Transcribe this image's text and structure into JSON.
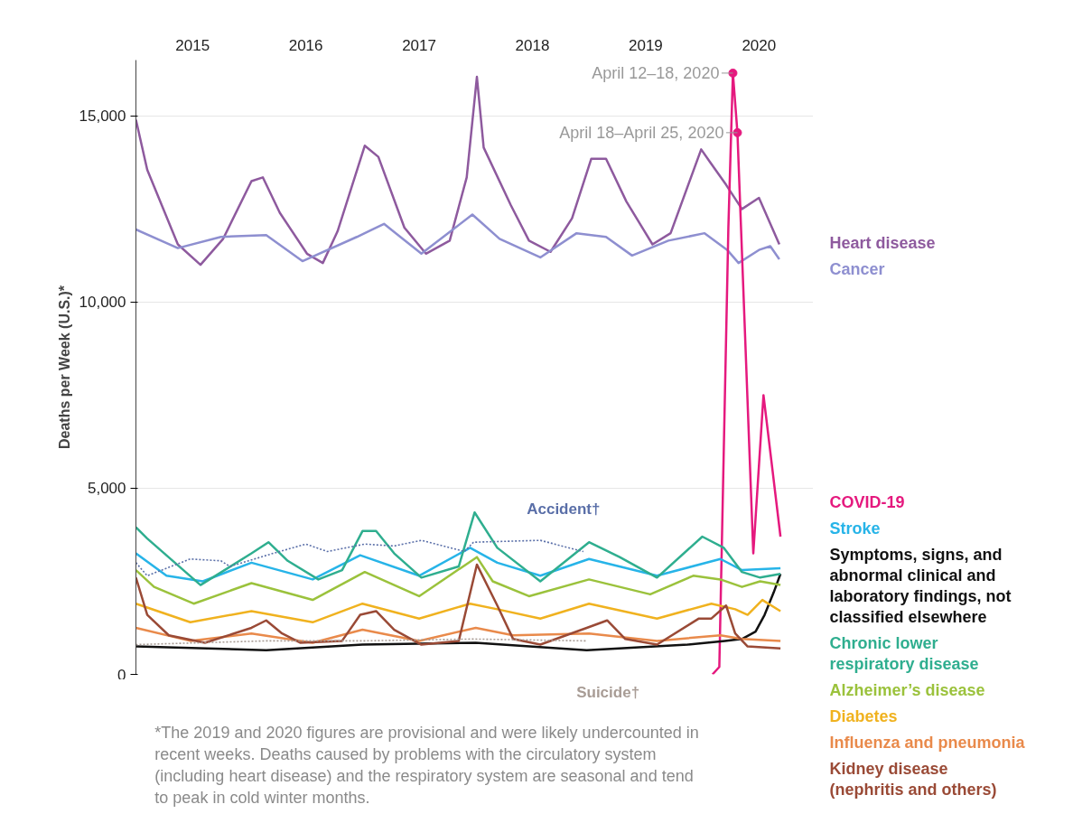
{
  "chart_data": {
    "type": "line",
    "ylabel": "Deaths per Week (U.S.)*",
    "xlim": [
      2015,
      2020.98
    ],
    "ylim": [
      0,
      16500
    ],
    "xticks": [
      {
        "value": 2015.5,
        "label": "2015"
      },
      {
        "value": 2016.5,
        "label": "2016"
      },
      {
        "value": 2017.5,
        "label": "2017"
      },
      {
        "value": 2018.5,
        "label": "2018"
      },
      {
        "value": 2019.5,
        "label": "2019"
      },
      {
        "value": 2020.5,
        "label": "2020"
      }
    ],
    "yticks": [
      0,
      {
        "value": 5000,
        "label": "5,000"
      },
      {
        "value": 10000,
        "label": "10,000"
      },
      {
        "value": 15000,
        "label": "15,000"
      }
    ],
    "grid": "y",
    "line_style": "solid",
    "marker": "none",
    "series": [
      {
        "name": "Heart disease",
        "color": "#8e5a9e",
        "x": [
          2015.0,
          2015.1,
          2015.37,
          2015.57,
          2015.77,
          2016.02,
          2016.12,
          2016.27,
          2016.51,
          2016.65,
          2016.78,
          2017.02,
          2017.14,
          2017.37,
          2017.56,
          2017.77,
          2017.92,
          2018.01,
          2018.07,
          2018.31,
          2018.47,
          2018.66,
          2018.85,
          2019.02,
          2019.15,
          2019.33,
          2019.56,
          2019.72,
          2019.99,
          2020.07,
          2020.21,
          2020.35,
          2020.5,
          2020.68
        ],
        "values": [
          14900,
          13550,
          11550,
          11000,
          11700,
          13250,
          13350,
          12400,
          11300,
          11050,
          11900,
          14200,
          13900,
          12000,
          11300,
          11650,
          13350,
          16050,
          14150,
          12600,
          11650,
          11350,
          12250,
          13850,
          13850,
          12700,
          11550,
          11850,
          14100,
          13750,
          13150,
          12500,
          12800,
          11550
        ]
      },
      {
        "name": "Cancer",
        "color": "#8e8fd0",
        "x": [
          2015.0,
          2015.37,
          2015.75,
          2016.15,
          2016.47,
          2016.95,
          2017.19,
          2017.52,
          2017.97,
          2018.21,
          2018.57,
          2018.89,
          2019.15,
          2019.38,
          2019.7,
          2020.02,
          2020.22,
          2020.32,
          2020.5,
          2020.6,
          2020.68
        ],
        "values": [
          11950,
          11450,
          11750,
          11800,
          11100,
          11750,
          12100,
          11300,
          12350,
          11700,
          11200,
          11850,
          11750,
          11250,
          11650,
          11850,
          11400,
          11050,
          11400,
          11500,
          11150
        ]
      },
      {
        "name": "COVID-19",
        "color": "#e5197e",
        "x": [
          2020.09,
          2020.15,
          2020.23,
          2020.27,
          2020.31,
          2020.45,
          2020.54,
          2020.69
        ],
        "values": [
          0,
          200,
          12000,
          16150,
          14550,
          3250,
          7500,
          3700
        ]
      },
      {
        "name": "Stroke",
        "color": "#27b4e8",
        "x": [
          2015.0,
          2015.27,
          2015.59,
          2016.02,
          2016.56,
          2016.98,
          2017.5,
          2017.95,
          2018.19,
          2018.57,
          2019.0,
          2019.6,
          2020.16,
          2020.35,
          2020.69
        ],
        "values": [
          3250,
          2650,
          2500,
          3000,
          2550,
          3200,
          2650,
          3400,
          3000,
          2650,
          3100,
          2650,
          3100,
          2800,
          2850
        ]
      },
      {
        "name": "Symptoms, signs, and abnormal clinical and laboratory findings, not classified elsewhere",
        "color": "#111111",
        "x": [
          2015.0,
          2016.15,
          2017.0,
          2018.0,
          2018.98,
          2019.87,
          2020.2,
          2020.35,
          2020.47,
          2020.55,
          2020.63,
          2020.69
        ],
        "values": [
          750,
          650,
          800,
          850,
          650,
          800,
          900,
          950,
          1150,
          1600,
          2200,
          2700
        ]
      },
      {
        "name": "Chronic lower respiratory disease",
        "color": "#2fae8f",
        "x": [
          2015.0,
          2015.1,
          2015.57,
          2016.02,
          2016.17,
          2016.34,
          2016.61,
          2016.82,
          2017.0,
          2017.12,
          2017.28,
          2017.52,
          2017.85,
          2017.99,
          2018.19,
          2018.57,
          2019.0,
          2019.27,
          2019.6,
          2020.0,
          2020.19,
          2020.35,
          2020.51,
          2020.69
        ],
        "values": [
          3950,
          3650,
          2400,
          3250,
          3550,
          3050,
          2550,
          2800,
          3850,
          3850,
          3250,
          2600,
          2900,
          4350,
          3400,
          2500,
          3550,
          3150,
          2600,
          3700,
          3400,
          2750,
          2600,
          2700
        ]
      },
      {
        "name": "Alzheimer’s disease",
        "color": "#9bc23c",
        "x": [
          2015.0,
          2015.16,
          2015.51,
          2016.02,
          2016.56,
          2017.02,
          2017.5,
          2018.01,
          2018.15,
          2018.47,
          2019.0,
          2019.54,
          2019.92,
          2020.16,
          2020.35,
          2020.51,
          2020.69
        ],
        "values": [
          2800,
          2350,
          1900,
          2450,
          2000,
          2750,
          2100,
          3150,
          2500,
          2100,
          2550,
          2150,
          2650,
          2550,
          2350,
          2500,
          2400
        ]
      },
      {
        "name": "Diabetes",
        "color": "#f0b21f",
        "x": [
          2015.0,
          2015.48,
          2016.02,
          2016.56,
          2017.0,
          2017.5,
          2017.95,
          2018.19,
          2018.57,
          2019.0,
          2019.6,
          2020.08,
          2020.29,
          2020.4,
          2020.53,
          2020.69
        ],
        "values": [
          1900,
          1400,
          1700,
          1400,
          1900,
          1500,
          1900,
          1750,
          1500,
          1900,
          1500,
          1900,
          1750,
          1600,
          2000,
          1700
        ]
      },
      {
        "name": "Influenza and pneumonia",
        "color": "#e98a4b",
        "x": [
          2015.0,
          2015.48,
          2016.02,
          2016.56,
          2017.0,
          2017.5,
          2018.0,
          2018.33,
          2019.0,
          2019.6,
          2020.16,
          2020.35,
          2020.69
        ],
        "values": [
          1250,
          900,
          1100,
          850,
          1200,
          900,
          1250,
          1050,
          1100,
          900,
          1050,
          950,
          900
        ]
      },
      {
        "name": "Kidney disease (nephritis and others)",
        "color": "#9a4a36",
        "x": [
          2015.0,
          2015.1,
          2015.29,
          2015.61,
          2015.97,
          2016.02,
          2016.15,
          2016.29,
          2016.45,
          2016.82,
          2016.98,
          2017.12,
          2017.28,
          2017.52,
          2017.85,
          2018.01,
          2018.19,
          2018.33,
          2018.57,
          2018.98,
          2019.16,
          2019.32,
          2019.6,
          2019.97,
          2020.08,
          2020.21,
          2020.29,
          2020.4,
          2020.69
        ],
        "values": [
          2600,
          1600,
          1050,
          850,
          1200,
          1250,
          1450,
          1100,
          850,
          900,
          1600,
          1700,
          1200,
          800,
          900,
          2950,
          1850,
          950,
          800,
          1250,
          1450,
          950,
          800,
          1500,
          1500,
          1850,
          1100,
          750,
          700
        ]
      },
      {
        "name": "Accident†",
        "color": "#5a6fa8",
        "line_style": "dotted",
        "x": [
          2015.0,
          2015.1,
          2015.48,
          2015.75,
          2015.83,
          2016.21,
          2016.5,
          2016.69,
          2017.02,
          2017.28,
          2017.52,
          2017.9,
          2017.98,
          2018.57,
          2018.95
        ],
        "values": [
          3000,
          2650,
          3100,
          3050,
          2900,
          3250,
          3500,
          3300,
          3500,
          3450,
          3600,
          3300,
          3550,
          3600,
          3300
        ]
      },
      {
        "name": "Suicide†",
        "color": "#a89c95",
        "line_style": "dotted",
        "x": [
          2015.0,
          2016.15,
          2017.0,
          2017.97,
          2018.97
        ],
        "values": [
          800,
          900,
          900,
          950,
          900
        ]
      }
    ],
    "annotations": [
      {
        "text": "April 12–18, 2020",
        "x": 2020.27,
        "y": 16150
      },
      {
        "text": "April 18–April 25, 2020",
        "x": 2020.31,
        "y": 14550
      },
      "*The 2019 and 2020 figures are provisional and were likely undercounted in recent weeks. Deaths caused by problems with the circulatory system (including heart disease) and the respiratory system are seasonal and tend to peak in cold winter months."
    ]
  }
}
